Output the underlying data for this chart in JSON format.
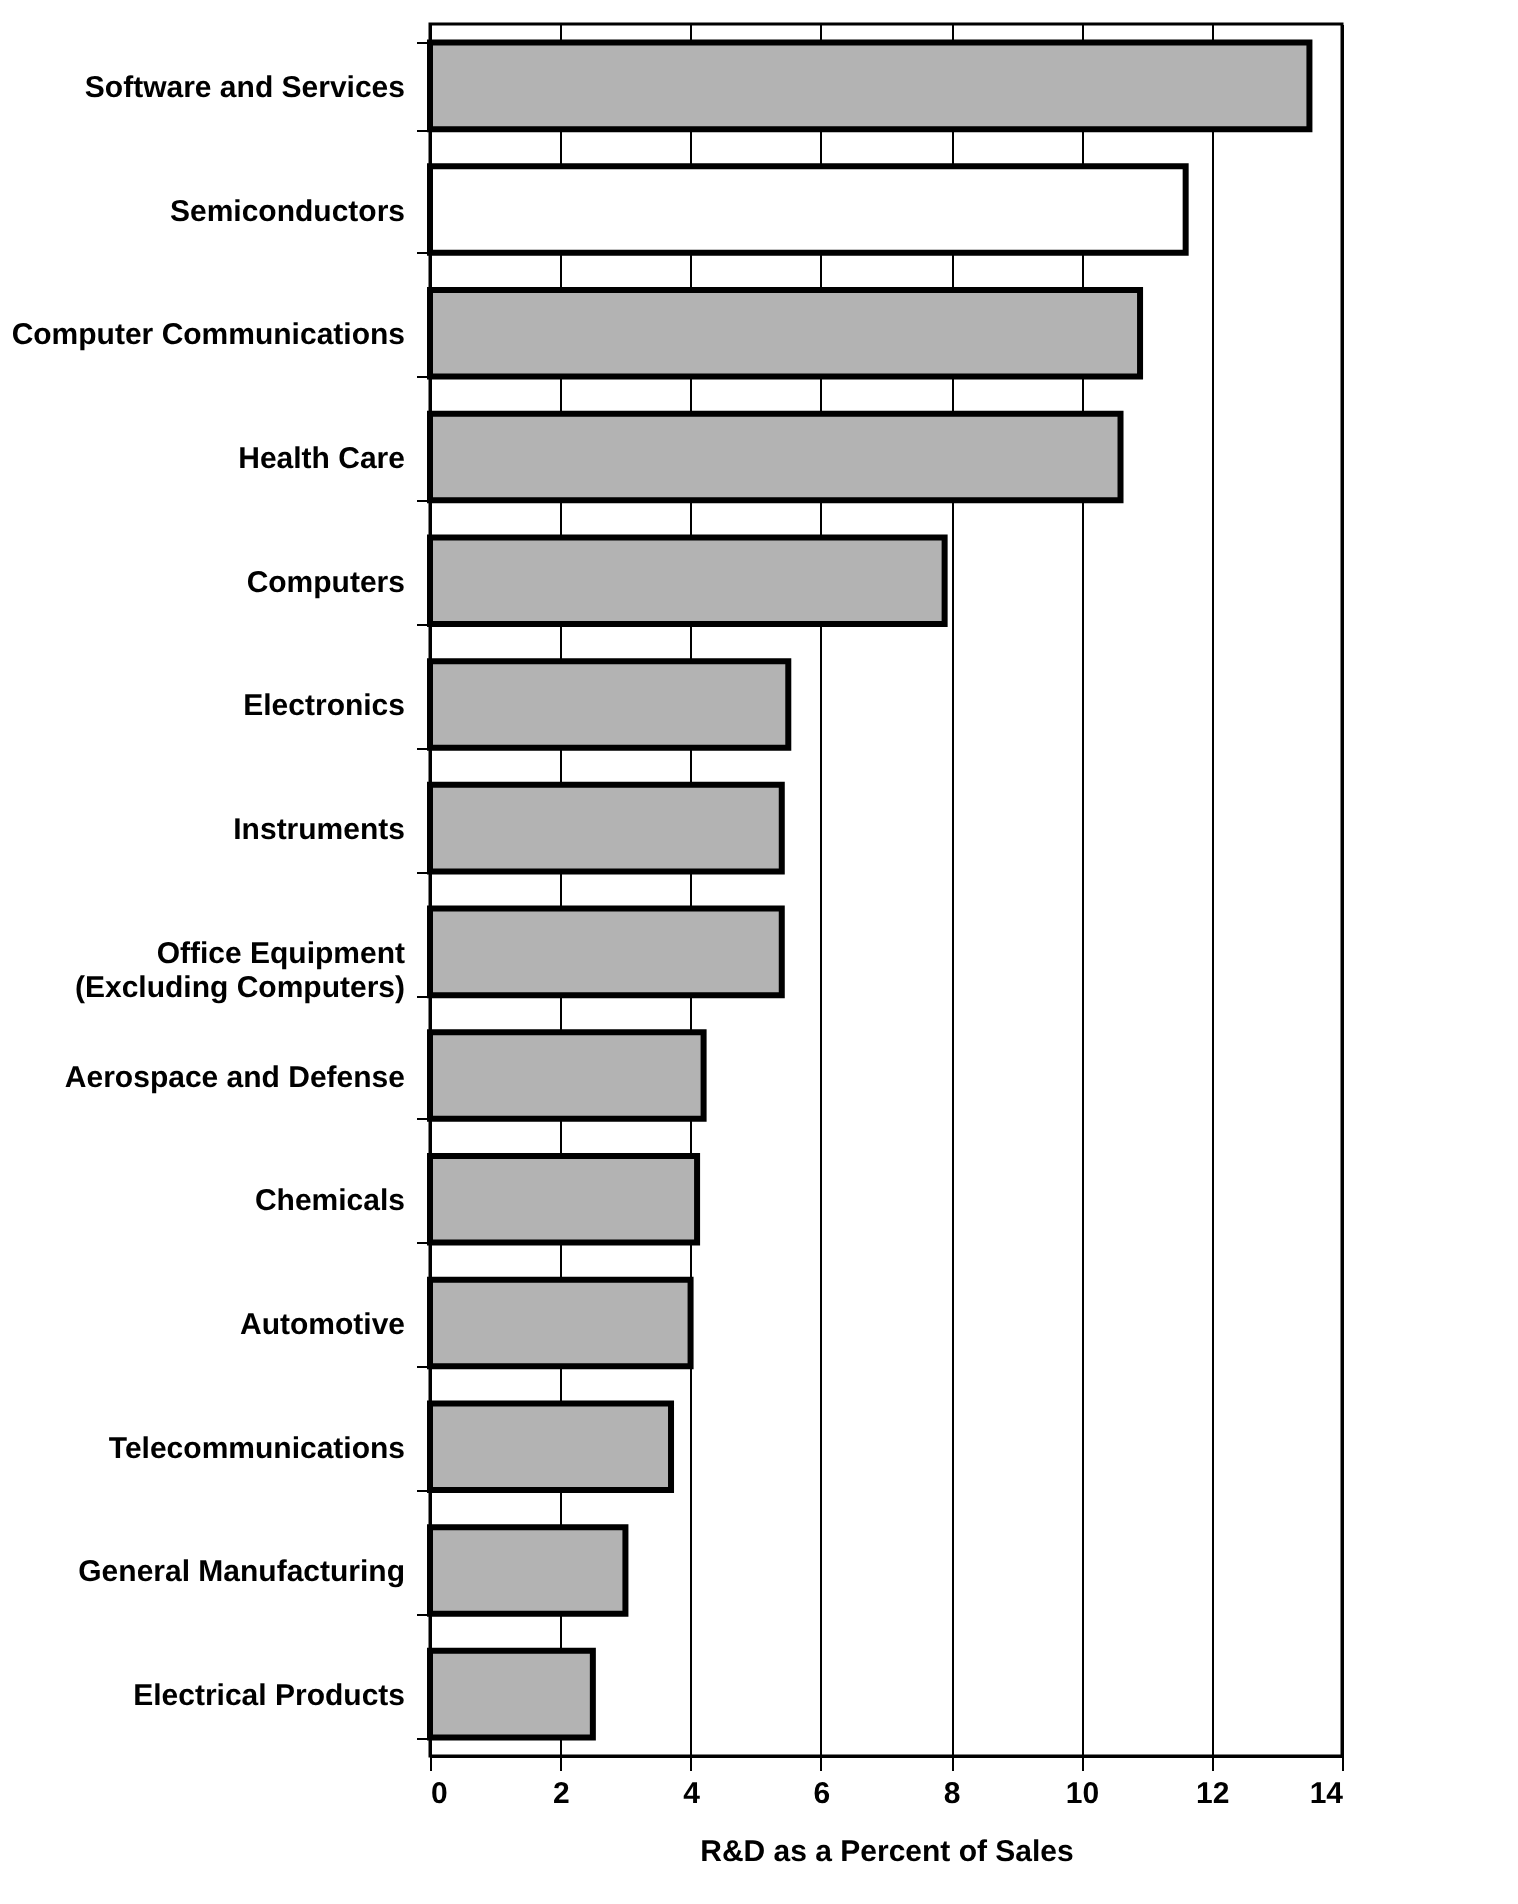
{
  "chart_data": {
    "type": "bar",
    "orientation": "horizontal",
    "xlabel": "R&D as a Percent of Sales",
    "categories": [
      "Software and Services",
      "Semiconductors",
      "Computer Communications",
      "Health Care",
      "Computers",
      "Electronics",
      "Instruments",
      "Office Equipment\n(Excluding Computers)",
      "Aerospace and Defense",
      "Chemicals",
      "Automotive",
      "Telecommunications",
      "General Manufacturing",
      "Electrical Products"
    ],
    "values": [
      13.5,
      11.6,
      10.9,
      10.6,
      7.9,
      5.5,
      5.4,
      5.4,
      4.2,
      4.1,
      4.0,
      3.7,
      3.0,
      2.5
    ],
    "colors": [
      "#b3b3b3",
      "#ffffff",
      "#b3b3b3",
      "#b3b3b3",
      "#b3b3b3",
      "#b3b3b3",
      "#b3b3b3",
      "#b3b3b3",
      "#b3b3b3",
      "#b3b3b3",
      "#b3b3b3",
      "#b3b3b3",
      "#b3b3b3",
      "#b3b3b3"
    ],
    "xlim": [
      0,
      14
    ],
    "xticks": [
      0,
      2,
      4,
      6,
      8,
      10,
      12,
      14
    ],
    "grid": "x"
  }
}
